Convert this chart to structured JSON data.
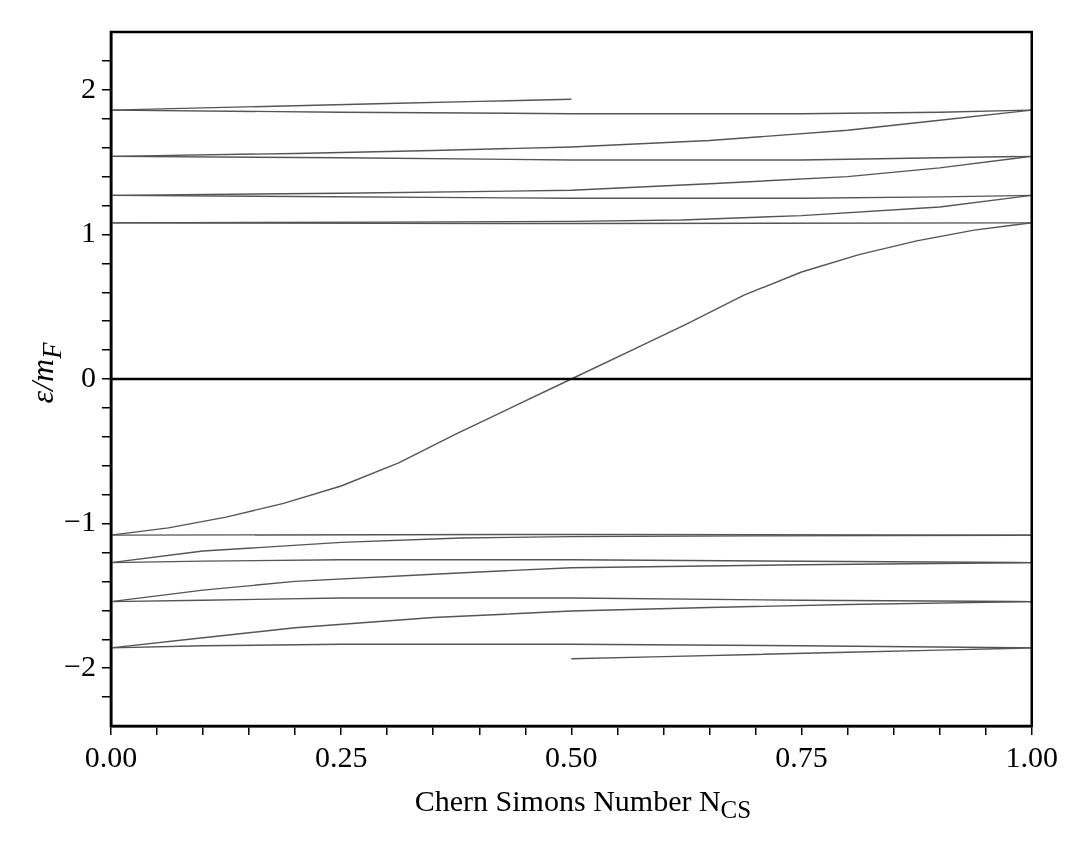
{
  "chart_data": {
    "type": "line",
    "xlabel": "Chern Simons Number N$_{CS}$",
    "ylabel": "ε/m$_{F}$",
    "xlim": [
      0,
      1
    ],
    "ylim": [
      -2.4,
      2.4
    ],
    "xticks": [
      {
        "value": 0,
        "label": "0.00"
      },
      {
        "value": 0.05,
        "label": null
      },
      {
        "value": 0.1,
        "label": null
      },
      {
        "value": 0.15,
        "label": null
      },
      {
        "value": 0.2,
        "label": null
      },
      {
        "value": 0.25,
        "label": "0.25"
      },
      {
        "value": 0.3,
        "label": null
      },
      {
        "value": 0.35,
        "label": null
      },
      {
        "value": 0.4,
        "label": null
      },
      {
        "value": 0.45,
        "label": null
      },
      {
        "value": 0.5,
        "label": "0.50"
      },
      {
        "value": 0.55,
        "label": null
      },
      {
        "value": 0.6,
        "label": null
      },
      {
        "value": 0.65,
        "label": null
      },
      {
        "value": 0.7,
        "label": null
      },
      {
        "value": 0.75,
        "label": "0.75"
      },
      {
        "value": 0.8,
        "label": null
      },
      {
        "value": 0.85,
        "label": null
      },
      {
        "value": 0.9,
        "label": null
      },
      {
        "value": 0.95,
        "label": null
      },
      {
        "value": 1,
        "label": "1.00"
      }
    ],
    "yticks": [
      {
        "value": -2.2,
        "label": null
      },
      {
        "value": -2,
        "label": "−2"
      },
      {
        "value": -1.8,
        "label": null
      },
      {
        "value": -1.6,
        "label": null
      },
      {
        "value": -1.4,
        "label": null
      },
      {
        "value": -1.2,
        "label": null
      },
      {
        "value": -1,
        "label": "−1"
      },
      {
        "value": -0.8,
        "label": null
      },
      {
        "value": -0.6,
        "label": null
      },
      {
        "value": -0.4,
        "label": null
      },
      {
        "value": -0.2,
        "label": null
      },
      {
        "value": 0,
        "label": "0"
      },
      {
        "value": 0.2,
        "label": null
      },
      {
        "value": 0.4,
        "label": null
      },
      {
        "value": 0.6,
        "label": null
      },
      {
        "value": 0.8,
        "label": null
      },
      {
        "value": 1,
        "label": "1"
      },
      {
        "value": 1.2,
        "label": null
      },
      {
        "value": 1.4,
        "label": null
      },
      {
        "value": 1.6,
        "label": null
      },
      {
        "value": 1.8,
        "label": null
      },
      {
        "value": 2,
        "label": "2"
      },
      {
        "value": 2.2,
        "label": null
      }
    ],
    "grid": false,
    "legend": false,
    "marker": "none",
    "line_style": "solid",
    "ref_lines": [
      {
        "axis": "y",
        "value": 0,
        "color": "#000000"
      }
    ],
    "series": [
      {
        "color": "#555555",
        "x": [
          0,
          0.0625,
          0.125,
          0.1875,
          0.25,
          0.3125,
          0.375,
          0.4375,
          0.5,
          0.5625,
          0.625,
          0.6875,
          0.75,
          0.8125,
          0.875,
          0.9375,
          1
        ],
        "values": [
          -1.08,
          -1.03,
          -0.955,
          -0.86,
          -0.74,
          -0.58,
          -0.38,
          -0.19,
          0,
          0.19,
          0.38,
          0.58,
          0.74,
          0.86,
          0.955,
          1.03,
          1.08
        ]
      },
      {
        "color": "#555555",
        "x": [
          0,
          0.1,
          0.2,
          0.3,
          0.4,
          0.5
        ],
        "values": [
          1.86,
          1.875,
          1.89,
          1.905,
          1.92,
          1.935
        ]
      },
      {
        "color": "#555555",
        "x": [
          0,
          0.25,
          0.5,
          0.75,
          0.9,
          1
        ],
        "values": [
          1.86,
          1.845,
          1.835,
          1.835,
          1.845,
          1.86
        ]
      },
      {
        "color": "#555555",
        "x": [
          0,
          0.2,
          0.35,
          0.5,
          0.65,
          0.8,
          0.9,
          1
        ],
        "values": [
          1.54,
          1.56,
          1.58,
          1.605,
          1.65,
          1.72,
          1.79,
          1.86
        ]
      },
      {
        "color": "#555555",
        "x": [
          0,
          0.25,
          0.5,
          0.75,
          0.9,
          1
        ],
        "values": [
          1.54,
          1.53,
          1.515,
          1.515,
          1.53,
          1.54
        ]
      },
      {
        "color": "#555555",
        "x": [
          0,
          0.25,
          0.5,
          0.65,
          0.8,
          0.9,
          1
        ],
        "values": [
          1.27,
          1.285,
          1.305,
          1.35,
          1.4,
          1.46,
          1.54
        ]
      },
      {
        "color": "#555555",
        "x": [
          0,
          0.5,
          0.75,
          0.9,
          1
        ],
        "values": [
          1.27,
          1.25,
          1.25,
          1.26,
          1.27
        ]
      },
      {
        "color": "#555555",
        "x": [
          0,
          0.5,
          1
        ],
        "values": [
          1.08,
          1.075,
          1.08
        ]
      },
      {
        "color": "#555555",
        "x": [
          0,
          0.3,
          0.5,
          0.62,
          0.75,
          0.9,
          1
        ],
        "values": [
          1.08,
          1.085,
          1.09,
          1.1,
          1.13,
          1.19,
          1.27
        ]
      },
      {
        "color": "#555555",
        "x": [
          0.5,
          0.6,
          0.7,
          0.8,
          0.9,
          1
        ],
        "values": [
          -1.935,
          -1.92,
          -1.905,
          -1.89,
          -1.875,
          -1.86
        ]
      },
      {
        "color": "#555555",
        "x": [
          0,
          0.1,
          0.25,
          0.5,
          0.75,
          1
        ],
        "values": [
          -1.86,
          -1.845,
          -1.835,
          -1.835,
          -1.845,
          -1.86
        ]
      },
      {
        "color": "#555555",
        "x": [
          0,
          0.1,
          0.2,
          0.35,
          0.5,
          0.65,
          0.8,
          1
        ],
        "values": [
          -1.86,
          -1.79,
          -1.72,
          -1.65,
          -1.605,
          -1.58,
          -1.56,
          -1.54
        ]
      },
      {
        "color": "#555555",
        "x": [
          0,
          0.1,
          0.25,
          0.5,
          0.75,
          1
        ],
        "values": [
          -1.54,
          -1.53,
          -1.515,
          -1.515,
          -1.53,
          -1.54
        ]
      },
      {
        "color": "#555555",
        "x": [
          0,
          0.1,
          0.2,
          0.35,
          0.5,
          0.75,
          1
        ],
        "values": [
          -1.54,
          -1.46,
          -1.4,
          -1.35,
          -1.305,
          -1.285,
          -1.27
        ]
      },
      {
        "color": "#555555",
        "x": [
          0,
          0.1,
          0.25,
          0.5,
          1
        ],
        "values": [
          -1.27,
          -1.26,
          -1.25,
          -1.25,
          -1.27
        ]
      },
      {
        "color": "#555555",
        "x": [
          0,
          0.5,
          1
        ],
        "values": [
          -1.08,
          -1.075,
          -1.08
        ]
      },
      {
        "color": "#555555",
        "x": [
          0,
          0.1,
          0.25,
          0.38,
          0.5,
          0.7,
          1
        ],
        "values": [
          -1.27,
          -1.19,
          -1.13,
          -1.1,
          -1.09,
          -1.085,
          -1.08
        ]
      }
    ]
  }
}
